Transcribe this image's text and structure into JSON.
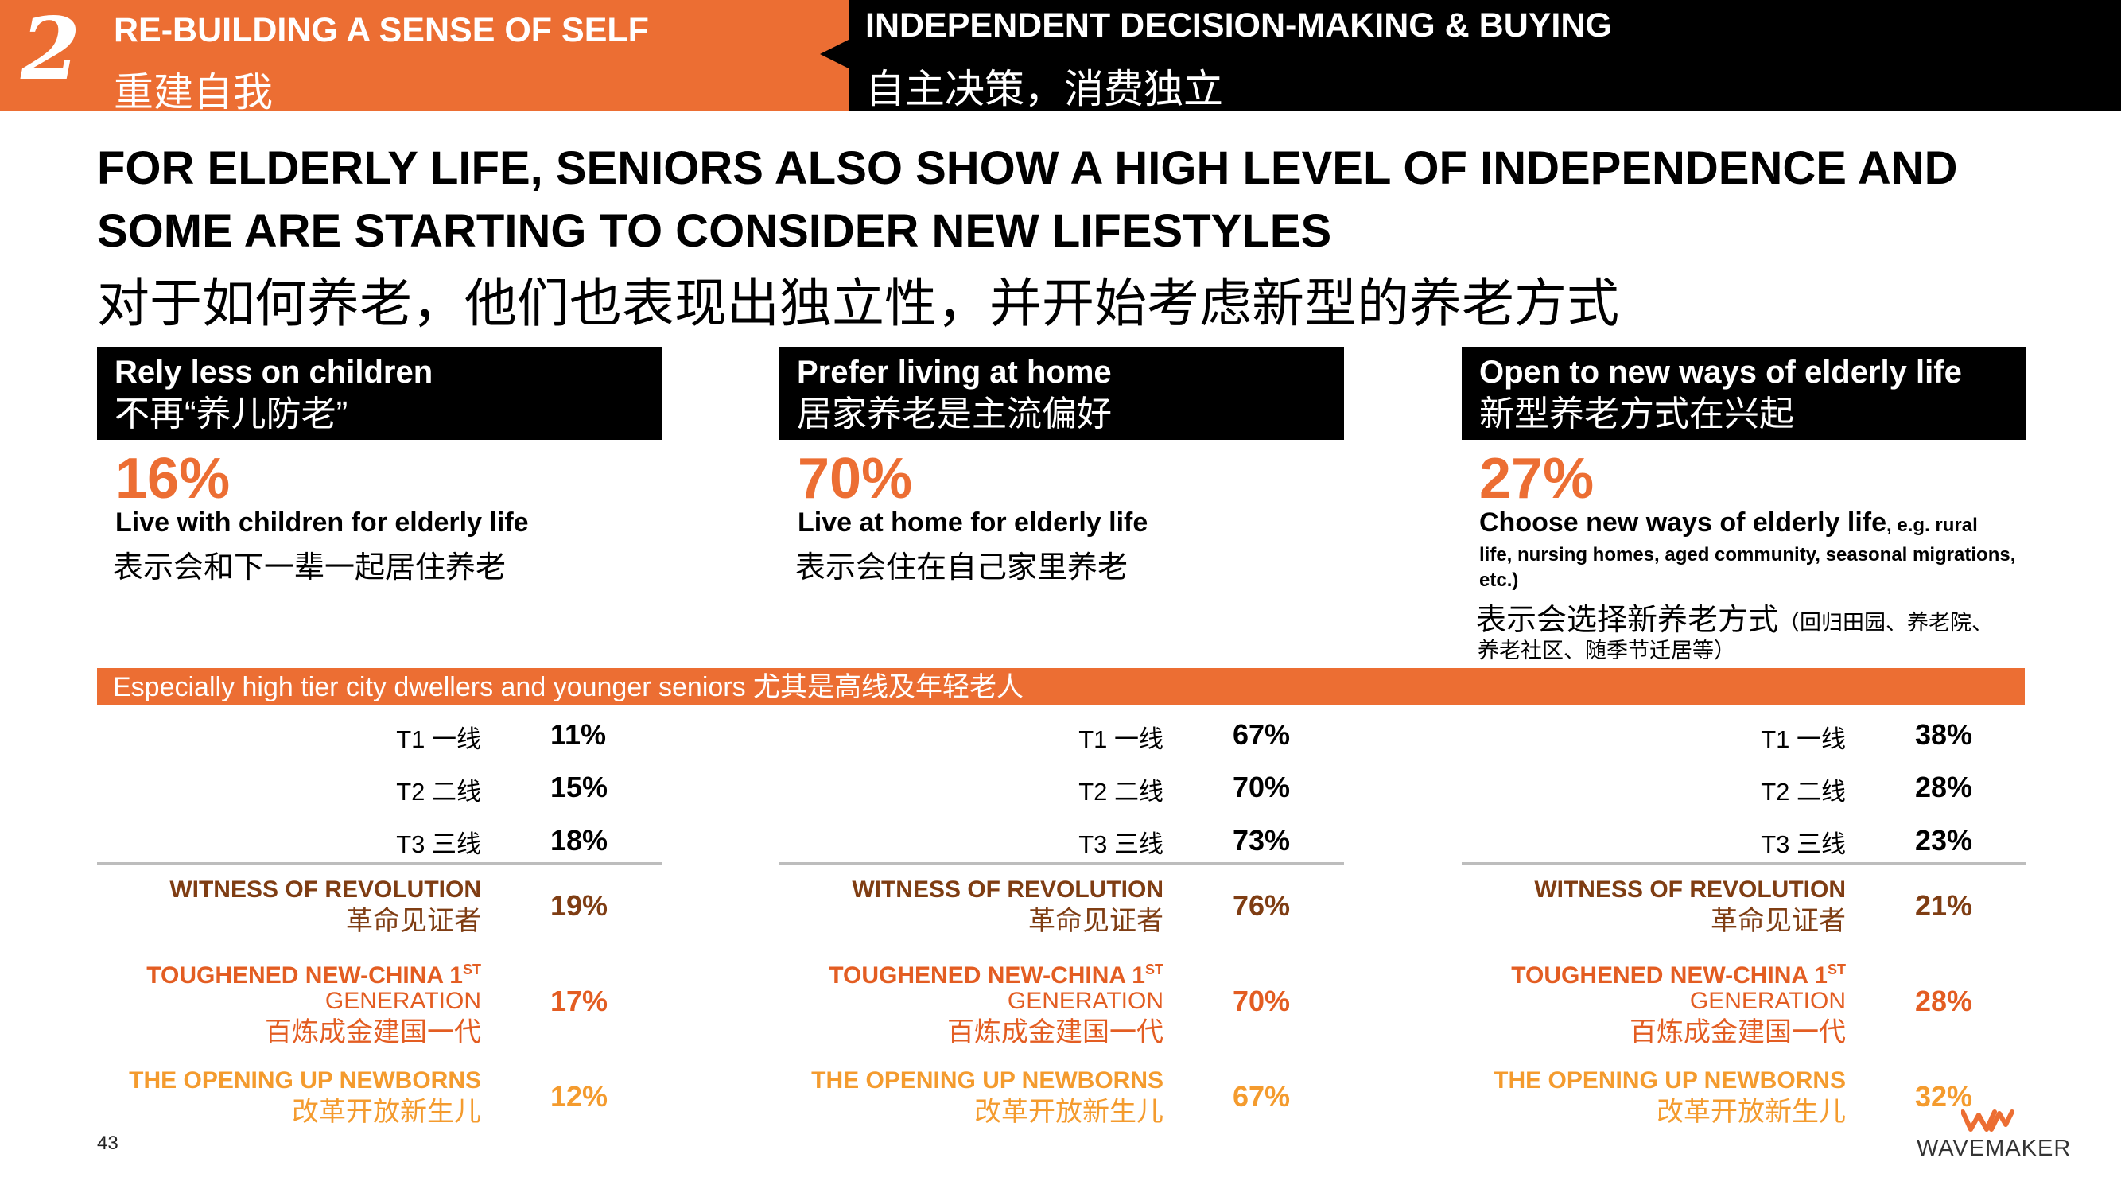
{
  "section": {
    "number": "2",
    "left_en": "RE-BUILDING A SENSE OF SELF",
    "left_zh": "重建自我",
    "right_en": "INDEPENDENT DECISION-MAKING & BUYING",
    "right_zh": "自主决策，消费独立"
  },
  "headline": {
    "en": "FOR ELDERLY LIFE, SENIORS ALSO SHOW A HIGH LEVEL OF INDEPENDENCE AND SOME ARE STARTING TO CONSIDER NEW LIFESTYLES",
    "zh": "对于如何养老，他们也表现出独立性，并开始考虑新型的养老方式"
  },
  "columns": [
    {
      "title_en": "Rely less on children",
      "title_zh": "不再“养儿防老”",
      "stat": "16%",
      "stat_en": "Live with children for elderly life",
      "stat_zh": "表示会和下一辈一起居住养老",
      "tiers": [
        "11%",
        "15%",
        "18%"
      ],
      "segments": [
        "19%",
        "17%",
        "12%"
      ]
    },
    {
      "title_en": "Prefer living at home",
      "title_zh": "居家养老是主流偏好",
      "stat": "70%",
      "stat_en": "Live at home for elderly life",
      "stat_zh": "表示会住在自己家里养老",
      "tiers": [
        "67%",
        "70%",
        "73%"
      ],
      "segments": [
        "76%",
        "70%",
        "67%"
      ]
    },
    {
      "title_en": "Open to new ways of elderly life",
      "title_zh": "新型养老方式在兴起",
      "stat": "27%",
      "stat_en": "Choose new ways of elderly life",
      "stat_en_small": ", e.g. rural",
      "stat_note": "life, nursing homes, aged community, seasonal migrations, etc.)",
      "stat_zh": "表示会选择新养老方式",
      "stat_zh_note1": "（回归田园、养老院、",
      "stat_zh_note2": "养老社区、随季节迁居等）",
      "tiers": [
        "38%",
        "28%",
        "23%"
      ],
      "segments": [
        "21%",
        "28%",
        "32%"
      ]
    }
  ],
  "strip": "Especially high tier city dwellers and younger seniors 尤其是高线及年轻老人",
  "tier_labels": [
    "T1 一线",
    "T2 二线",
    "T3 三线"
  ],
  "segment_labels": {
    "revolution_en": "WITNESS OF REVOLUTION",
    "revolution_zh": "革命见证者",
    "toughened_en": "TOUGHENED NEW-CHINA 1",
    "toughened_sup": "ST",
    "toughened_en2": "GENERATION",
    "toughened_zh": "百炼成金建国一代",
    "opening_en": "THE OPENING UP NEWBORNS",
    "opening_zh": "改革开放新生儿"
  },
  "colors": {
    "accent": "#ec6e33",
    "revolution": "#7f3d13",
    "toughened": "#e35d22",
    "opening": "#f49b2e"
  },
  "footer": {
    "page": "43",
    "logo_mark": "WM",
    "logo": "WAVEMAKER"
  }
}
